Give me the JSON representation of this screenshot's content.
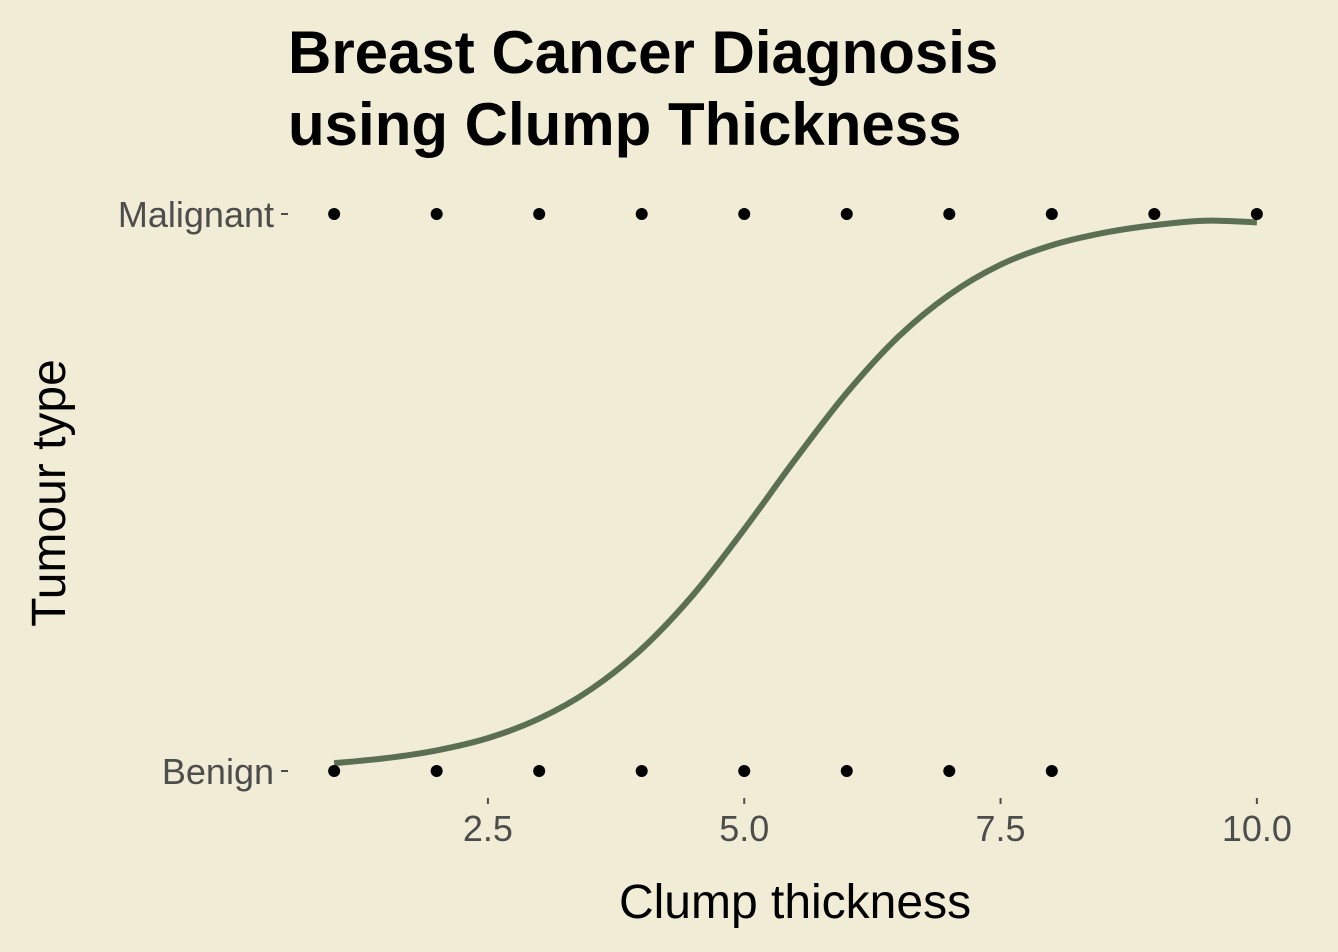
{
  "chart_data": {
    "type": "scatter",
    "title_lines": [
      "Breast Cancer Diagnosis",
      "using Clump Thickness"
    ],
    "xlabel": "Clump thickness",
    "ylabel": "Tumour type",
    "x_ticks": [
      "2.5",
      "5.0",
      "7.5",
      "10.0"
    ],
    "x_tick_values": [
      2.5,
      5.0,
      7.5,
      10.0
    ],
    "xlim": [
      0.55,
      10.45
    ],
    "y_categories": [
      "Benign",
      "Malignant"
    ],
    "grid": false,
    "colors": {
      "background": "#F0ECD5",
      "points": "#000000",
      "curve": "#5B7052",
      "tick_text": "#4D4D4D"
    },
    "series": [
      {
        "kind": "points",
        "category": "Malignant",
        "x": [
          1,
          2,
          3,
          4,
          5,
          6,
          7,
          8,
          9,
          10
        ]
      },
      {
        "kind": "points",
        "category": "Benign",
        "x": [
          1,
          2,
          3,
          4,
          5,
          6,
          7,
          8
        ]
      },
      {
        "kind": "curve",
        "x": [
          1,
          1.5,
          2,
          2.5,
          3,
          3.5,
          4,
          4.5,
          5,
          5.5,
          6,
          6.5,
          7,
          7.5,
          8,
          8.5,
          9,
          9.5,
          10
        ],
        "y": [
          0.014,
          0.023,
          0.037,
          0.059,
          0.094,
          0.146,
          0.219,
          0.316,
          0.434,
          0.56,
          0.679,
          0.779,
          0.855,
          0.909,
          0.944,
          0.966,
          0.98,
          0.988,
          0.985
        ]
      }
    ]
  }
}
